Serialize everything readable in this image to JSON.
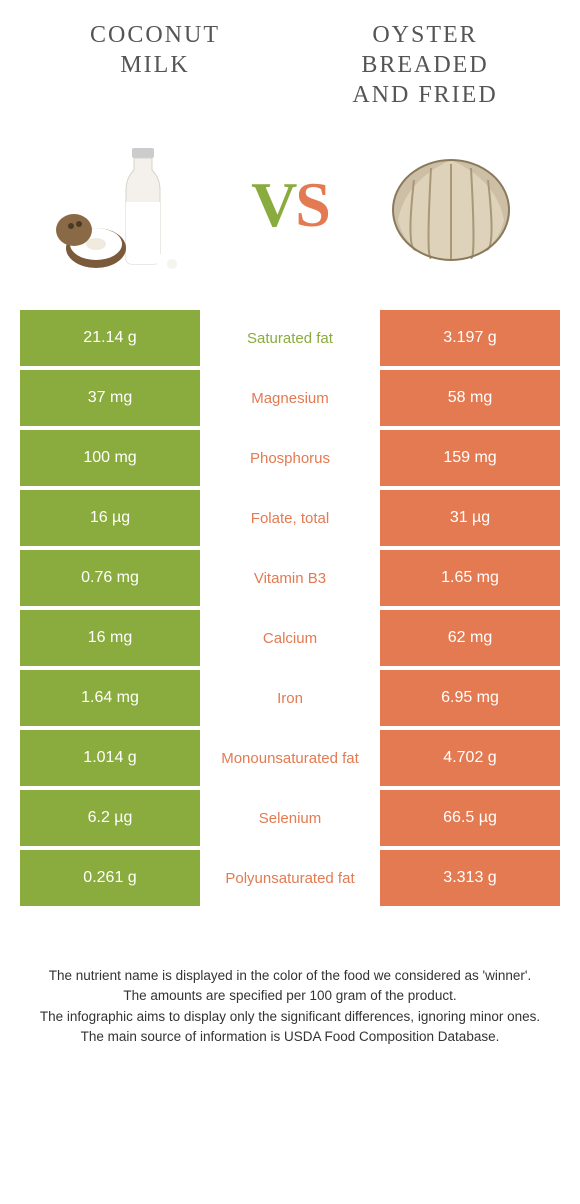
{
  "colors": {
    "left": "#8aab3e",
    "right": "#e37a52",
    "title": "#555555",
    "background": "#ffffff"
  },
  "left_food": {
    "title_line1": "COCONUT",
    "title_line2": "MILK"
  },
  "right_food": {
    "title_line1": "OYSTER",
    "title_line2": "BREADED",
    "title_line3": "AND FRIED"
  },
  "vs": {
    "v": "V",
    "s": "S"
  },
  "rows": [
    {
      "left": "21.14 g",
      "label": "Saturated fat",
      "right": "3.197 g",
      "winner": "left"
    },
    {
      "left": "37 mg",
      "label": "Magnesium",
      "right": "58 mg",
      "winner": "right"
    },
    {
      "left": "100 mg",
      "label": "Phosphorus",
      "right": "159 mg",
      "winner": "right"
    },
    {
      "left": "16 µg",
      "label": "Folate, total",
      "right": "31 µg",
      "winner": "right"
    },
    {
      "left": "0.76 mg",
      "label": "Vitamin B3",
      "right": "1.65 mg",
      "winner": "right"
    },
    {
      "left": "16 mg",
      "label": "Calcium",
      "right": "62 mg",
      "winner": "right"
    },
    {
      "left": "1.64 mg",
      "label": "Iron",
      "right": "6.95 mg",
      "winner": "right"
    },
    {
      "left": "1.014 g",
      "label": "Monounsaturated fat",
      "right": "4.702 g",
      "winner": "right"
    },
    {
      "left": "6.2 µg",
      "label": "Selenium",
      "right": "66.5 µg",
      "winner": "right"
    },
    {
      "left": "0.261 g",
      "label": "Polyunsaturated fat",
      "right": "3.313 g",
      "winner": "right"
    }
  ],
  "footer": {
    "l1": "The nutrient name is displayed in the color of the food we considered as 'winner'.",
    "l2": "The amounts are specified per 100 gram of the product.",
    "l3": "The infographic aims to display only the significant differences, ignoring minor ones.",
    "l4": "The main source of information is USDA Food Composition Database."
  }
}
